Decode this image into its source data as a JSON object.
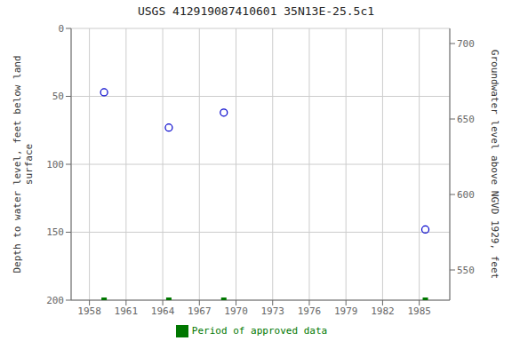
{
  "chart_data": {
    "type": "scatter",
    "title": "USGS 412919087410601 35N13E-25.5c1",
    "xlim": [
      1956.5,
      1987.5
    ],
    "xticks": [
      1958,
      1961,
      1964,
      1967,
      1970,
      1973,
      1976,
      1979,
      1982,
      1985
    ],
    "ylim": [
      200,
      0
    ],
    "yticks": [
      0,
      50,
      100,
      150,
      200
    ],
    "y2lim": [
      530,
      710
    ],
    "y2ticks": [
      550,
      600,
      650,
      700
    ],
    "ylabel": "Depth to water level, feet below land\nsurface",
    "y2label": "Groundwater level above NGVD 1929, feet",
    "grid": true,
    "legend": "bottom",
    "series": [
      {
        "color": "#0000cc",
        "marker": "circle",
        "x": [
          1959.2,
          1964.5,
          1969.0,
          1985.5
        ],
        "values": [
          47,
          73,
          62,
          148
        ]
      },
      {
        "name": "Period of approved data",
        "color": "#007700",
        "marker": "square",
        "x": [
          1959.2,
          1964.5,
          1969.0,
          1985.5
        ],
        "values": [
          200,
          200,
          200,
          200
        ]
      }
    ]
  }
}
